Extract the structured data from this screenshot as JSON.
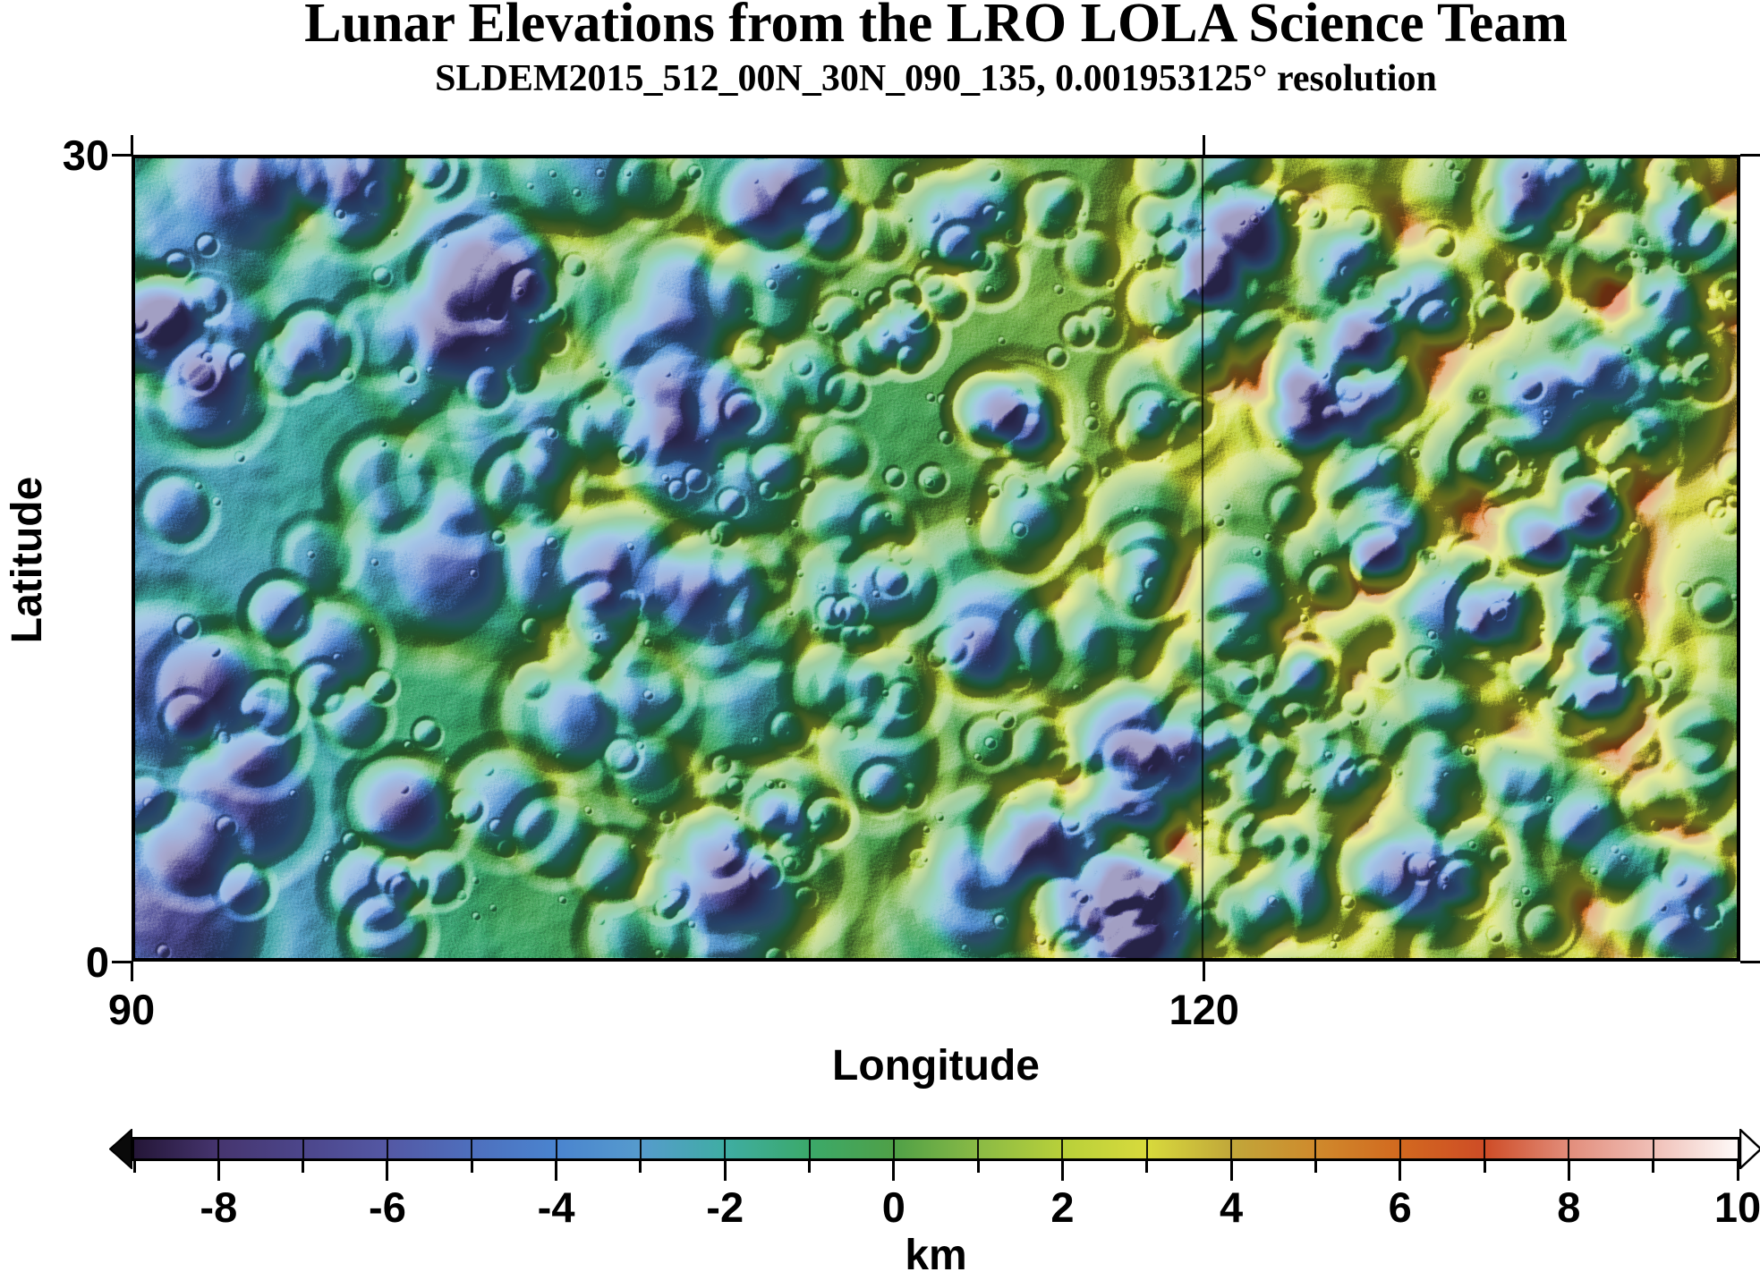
{
  "title": "Lunar Elevations from the LRO LOLA Science Team",
  "subtitle": "SLDEM2015_512_00N_30N_090_135, 0.001953125° resolution",
  "axes": {
    "x": {
      "label": "Longitude",
      "range": [
        90,
        135
      ],
      "ticks": [
        {
          "value": 90,
          "label": "90"
        },
        {
          "value": 120,
          "label": "120"
        }
      ]
    },
    "y": {
      "label": "Latitude",
      "range": [
        0,
        30
      ],
      "ticks": [
        {
          "value": 0,
          "label": "0"
        },
        {
          "value": 30,
          "label": "30"
        }
      ]
    }
  },
  "colorbar": {
    "unit": "km",
    "range_km": [
      -9,
      10
    ],
    "major_ticks": [
      -8,
      -6,
      -4,
      -2,
      0,
      2,
      4,
      6,
      8,
      10
    ],
    "minor_tick_step_km": 1,
    "left_arrow": "values-below-range",
    "right_arrow": "values-above-range"
  },
  "chart_data": {
    "type": "heatmap",
    "title": "Lunar Elevations from the LRO LOLA Science Team",
    "subtitle": "SLDEM2015_512_00N_30N_090_135, 0.001953125° resolution",
    "region": {
      "lon_min": 90,
      "lon_max": 135,
      "lat_min": 0,
      "lat_max": 30
    },
    "resolution_deg": 0.001953125,
    "gridline_meridians": [
      120
    ],
    "elevation_range_km": [
      -9,
      10
    ],
    "hillshade": "NW illumination",
    "legend_position": "bottom",
    "colormap_stops": [
      [
        -9,
        "#241637"
      ],
      [
        -8,
        "#46356f"
      ],
      [
        -7,
        "#4c468b"
      ],
      [
        -6,
        "#5458a4"
      ],
      [
        -5,
        "#4e6fbd"
      ],
      [
        -4,
        "#4a84cf"
      ],
      [
        -3,
        "#569bcd"
      ],
      [
        -2,
        "#3fada3"
      ],
      [
        -1,
        "#3ba96a"
      ],
      [
        0,
        "#4fa047"
      ],
      [
        1,
        "#8aba45"
      ],
      [
        2,
        "#b8d03a"
      ],
      [
        3,
        "#d8da3c"
      ],
      [
        4,
        "#c1a73a"
      ],
      [
        5,
        "#cf8a2c"
      ],
      [
        6,
        "#d2691f"
      ],
      [
        7,
        "#ce4c26"
      ],
      [
        8,
        "#e28d7b"
      ],
      [
        9,
        "#f0bfb7"
      ],
      [
        10,
        "#fefaf8"
      ]
    ],
    "elevation_trend_km": [
      [
        90,
        -2.6
      ],
      [
        93,
        -2.1
      ],
      [
        97,
        -1.5
      ],
      [
        101,
        -0.9
      ],
      [
        105,
        -0.5
      ],
      [
        109,
        -0.3
      ],
      [
        113,
        0.1
      ],
      [
        117,
        0.5
      ],
      [
        121,
        0.9
      ],
      [
        126,
        1.5
      ],
      [
        131,
        2.0
      ],
      [
        135,
        2.4
      ]
    ],
    "lowlands": [
      {
        "lon": 91.0,
        "lat": 2.5,
        "depth_km": 1.9,
        "sigma_lon": 5.5,
        "sigma_lat": 6.5
      },
      {
        "lon": 93.5,
        "lat": 25.5,
        "depth_km": 0.6,
        "sigma_lon": 4.5,
        "sigma_lat": 5.0
      }
    ],
    "prominent_craters": [
      [
        92.1,
        27.7,
        2.4,
        -4.2
      ],
      [
        91.5,
        21.2,
        1.6,
        -3.6
      ],
      [
        96.0,
        28.3,
        1.4,
        -3.0
      ],
      [
        96.8,
        23.4,
        1.2,
        -3.2
      ],
      [
        97.1,
        17.8,
        1.4,
        -3.8
      ],
      [
        95.1,
        15.1,
        1.0,
        -2.8
      ],
      [
        101.0,
        17.6,
        1.2,
        -3.6
      ],
      [
        105.0,
        18.6,
        1.55,
        -2.6
      ],
      [
        107.6,
        14.5,
        1.13,
        -2.2
      ],
      [
        103.1,
        12.8,
        1.0,
        -3.4
      ],
      [
        92.8,
        10.5,
        1.4,
        -3.2
      ],
      [
        114.0,
        20.6,
        1.05,
        -3.8
      ],
      [
        111.6,
        23.4,
        1.0,
        -3.6
      ],
      [
        108.8,
        29.3,
        1.13,
        -2.4
      ],
      [
        113.7,
        11.3,
        1.13,
        -2.0
      ],
      [
        121.4,
        27.4,
        1.4,
        -2.2
      ],
      [
        131.1,
        10.3,
        1.2,
        -2.0
      ],
      [
        125.0,
        14.8,
        0.9,
        -2.4
      ],
      [
        107.1,
        5.8,
        1.25,
        -2.6
      ],
      [
        121.0,
        6.0,
        1.1,
        -1.8
      ],
      [
        117.9,
        2.5,
        1.0,
        -1.5
      ],
      [
        104.5,
        29.0,
        1.0,
        -2.2
      ],
      [
        98.5,
        29.5,
        0.9,
        -2.5
      ]
    ]
  }
}
